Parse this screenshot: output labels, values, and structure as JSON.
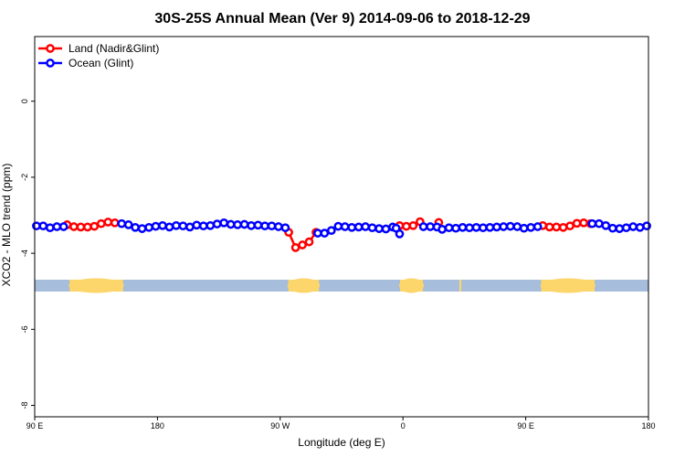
{
  "chart_data": {
    "type": "line",
    "title": "30S-25S Annual Mean (Ver 9)   2014-09-06 to 2018-12-29",
    "xlabel": "Longitude (deg E)",
    "ylabel": "XCO2 - MLO trend (ppm)",
    "xlim": [
      90,
      450
    ],
    "ylim": [
      -8.3,
      1.7
    ],
    "xticks": [
      {
        "value": 90,
        "label": "90 E"
      },
      {
        "value": 162,
        "label": "180"
      },
      {
        "value": 234,
        "label": "90 W"
      },
      {
        "value": 306,
        "label": "0"
      },
      {
        "value": 378,
        "label": "90 E"
      },
      {
        "value": 450,
        "label": "180"
      }
    ],
    "yticks": [
      {
        "value": 0,
        "label": "0"
      },
      {
        "value": -2,
        "label": "-2"
      },
      {
        "value": -4,
        "label": "-4"
      },
      {
        "value": -6,
        "label": "-6"
      },
      {
        "value": -8,
        "label": "-8"
      }
    ],
    "legend": {
      "position": "top-left",
      "entries": [
        {
          "label": "Land (Nadir&Glint)",
          "color": "#ff0000"
        },
        {
          "label": "Ocean (Glint)",
          "color": "#0000ff"
        }
      ]
    },
    "surface_band": {
      "y_center": -4.85,
      "ocean_color": "#a6bddb",
      "land_color": "#fcd66b",
      "land_ranges": [
        [
          110.5,
          141.8
        ],
        [
          238.8,
          256.7
        ],
        [
          304.3,
          317.7
        ],
        [
          339.1,
          340.2
        ],
        [
          387.1,
          418.4
        ]
      ]
    },
    "series": [
      {
        "name": "Land (Nadir&Glint)",
        "color": "#ff0000",
        "segments": [
          {
            "x": [
              109,
              113,
              117,
              121,
              125,
              129,
              133,
              137
            ],
            "y": [
              -3.25,
              -3.3,
              -3.31,
              -3.31,
              -3.29,
              -3.22,
              -3.18,
              -3.2
            ]
          },
          {
            "x": [
              239,
              243,
              247,
              251,
              255
            ],
            "y": [
              -3.45,
              -3.85,
              -3.78,
              -3.7,
              -3.45
            ]
          },
          {
            "x": [
              304,
              308,
              312,
              316
            ],
            "y": [
              -3.27,
              -3.29,
              -3.27,
              -3.17
            ]
          },
          {
            "x": [
              327
            ],
            "y": [
              -3.19
            ]
          },
          {
            "x": [
              388,
              392,
              396,
              400,
              404,
              408,
              412,
              416
            ],
            "y": [
              -3.27,
              -3.31,
              -3.31,
              -3.32,
              -3.28,
              -3.21,
              -3.2,
              -3.22
            ]
          }
        ]
      },
      {
        "name": "Ocean (Glint)",
        "color": "#0000ff",
        "segments": [
          {
            "x": [
              91,
              95,
              99,
              103,
              107
            ],
            "y": [
              -3.28,
              -3.28,
              -3.33,
              -3.3,
              -3.3
            ]
          },
          {
            "x": [
              141,
              145,
              149,
              153,
              157,
              161,
              165,
              169,
              173,
              177,
              181,
              185,
              189,
              193,
              197,
              201,
              205,
              209,
              213,
              217,
              221,
              225,
              229,
              233,
              237
            ],
            "y": [
              -3.22,
              -3.25,
              -3.32,
              -3.35,
              -3.32,
              -3.29,
              -3.27,
              -3.31,
              -3.27,
              -3.28,
              -3.31,
              -3.26,
              -3.28,
              -3.27,
              -3.23,
              -3.2,
              -3.24,
              -3.25,
              -3.24,
              -3.27,
              -3.26,
              -3.28,
              -3.28,
              -3.3,
              -3.33
            ]
          },
          {
            "x": [
              256,
              260,
              264,
              268,
              272,
              276,
              280,
              284,
              288,
              292,
              296,
              300
            ],
            "y": [
              -3.47,
              -3.47,
              -3.4,
              -3.29,
              -3.3,
              -3.32,
              -3.31,
              -3.3,
              -3.33,
              -3.35,
              -3.36,
              -3.31
            ]
          },
          {
            "x": [
              302,
              304
            ],
            "y": [
              -3.34,
              -3.49
            ]
          },
          {
            "x": [
              318,
              322,
              326,
              329,
              333,
              337,
              341,
              345,
              349,
              353,
              357,
              361,
              365,
              369,
              373,
              377,
              381,
              385
            ],
            "y": [
              -3.3,
              -3.3,
              -3.31,
              -3.37,
              -3.33,
              -3.34,
              -3.32,
              -3.33,
              -3.32,
              -3.33,
              -3.32,
              -3.31,
              -3.3,
              -3.29,
              -3.3,
              -3.34,
              -3.32,
              -3.3
            ]
          },
          {
            "x": [
              417,
              421,
              425,
              429,
              433,
              437,
              441,
              445,
              449
            ],
            "y": [
              -3.22,
              -3.22,
              -3.27,
              -3.34,
              -3.35,
              -3.33,
              -3.3,
              -3.32,
              -3.28
            ]
          }
        ]
      }
    ]
  }
}
